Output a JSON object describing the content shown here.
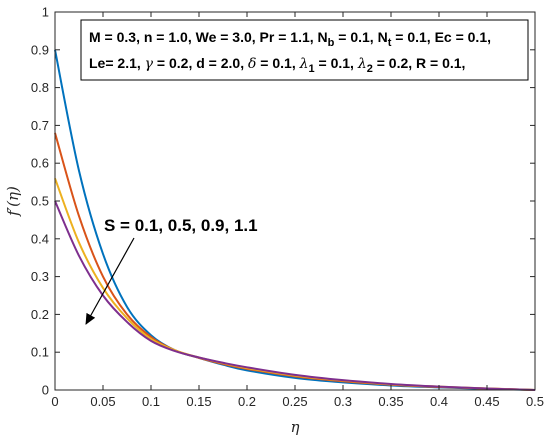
{
  "chart_data": {
    "type": "line",
    "xlabel": "η",
    "ylabel": "f′(η)",
    "xlim": [
      0,
      0.5
    ],
    "ylim": [
      0,
      1
    ],
    "x_ticks": [
      "0",
      "0.05",
      "0.1",
      "0.15",
      "0.2",
      "0.25",
      "0.3",
      "0.35",
      "0.4",
      "0.45",
      "0.5"
    ],
    "y_ticks": [
      "0",
      "0.1",
      "0.2",
      "0.3",
      "0.4",
      "0.5",
      "0.6",
      "0.7",
      "0.8",
      "0.9",
      "1"
    ],
    "parameters_line1": "M = 0.3, n = 1.0, We = 3.0, Pr = 1.1, Nb = 0.1, Nt = 0.1, Ec = 0.1,",
    "parameters_line2": "Le= 2.1, γ = 0.2, d = 2.0, δ = 0.1, λ1 = 0.1, λ2 = 0.2, R = 0.1,",
    "annotation": "S = 0.1, 0.5, 0.9, 1.1",
    "grid": false,
    "series": [
      {
        "color": "#0072BD",
        "x": [
          0,
          0.025,
          0.05,
          0.075,
          0.1,
          0.125,
          0.15,
          0.175,
          0.2,
          0.25,
          0.3,
          0.35,
          0.4,
          0.45,
          0.5
        ],
        "y": [
          0.9,
          0.58,
          0.36,
          0.22,
          0.145,
          0.105,
          0.085,
          0.067,
          0.052,
          0.032,
          0.02,
          0.012,
          0.007,
          0.003,
          0.0
        ]
      },
      {
        "color": "#D95319",
        "x": [
          0,
          0.025,
          0.05,
          0.075,
          0.1,
          0.125,
          0.15,
          0.175,
          0.2,
          0.25,
          0.3,
          0.35,
          0.4,
          0.45,
          0.5
        ],
        "y": [
          0.68,
          0.46,
          0.3,
          0.2,
          0.14,
          0.105,
          0.085,
          0.069,
          0.056,
          0.036,
          0.023,
          0.014,
          0.008,
          0.004,
          0.0
        ]
      },
      {
        "color": "#EDB120",
        "x": [
          0,
          0.025,
          0.05,
          0.075,
          0.1,
          0.125,
          0.15,
          0.175,
          0.2,
          0.25,
          0.3,
          0.35,
          0.4,
          0.45,
          0.5
        ],
        "y": [
          0.56,
          0.39,
          0.27,
          0.19,
          0.135,
          0.105,
          0.086,
          0.071,
          0.058,
          0.038,
          0.025,
          0.015,
          0.009,
          0.004,
          0.0
        ]
      },
      {
        "color": "#7E2F8E",
        "x": [
          0,
          0.025,
          0.05,
          0.075,
          0.1,
          0.125,
          0.15,
          0.175,
          0.2,
          0.25,
          0.3,
          0.35,
          0.4,
          0.45,
          0.5
        ],
        "y": [
          0.5,
          0.355,
          0.25,
          0.18,
          0.13,
          0.103,
          0.086,
          0.072,
          0.06,
          0.04,
          0.026,
          0.016,
          0.009,
          0.004,
          0.0
        ]
      }
    ]
  }
}
